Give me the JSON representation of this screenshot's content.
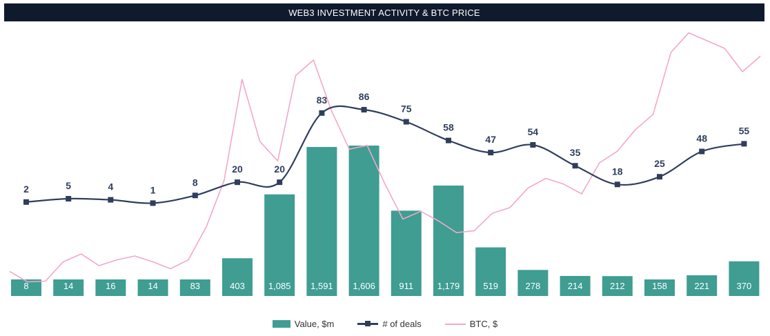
{
  "chart_data": {
    "type": "bar",
    "title": "WEB3 INVESTMENT ACTIVITY & BTC PRICE",
    "legend_position": "bottom",
    "grid": false,
    "series": [
      {
        "name": "Value, $m",
        "type": "bar",
        "color": "#3f9d92",
        "values": [
          8,
          14,
          16,
          14,
          83,
          403,
          1085,
          1591,
          1606,
          911,
          1179,
          519,
          278,
          214,
          212,
          158,
          221,
          370
        ],
        "labels": [
          "8",
          "14",
          "16",
          "14",
          "83",
          "403",
          "1,085",
          "1,591",
          "1,606",
          "911",
          "1,179",
          "519",
          "278",
          "214",
          "212",
          "158",
          "221",
          "370"
        ]
      },
      {
        "name": "# of deals",
        "type": "line",
        "color": "#2f3e5c",
        "values": [
          2,
          5,
          4,
          1,
          8,
          20,
          20,
          83,
          86,
          75,
          58,
          47,
          54,
          35,
          18,
          25,
          48,
          55
        ]
      },
      {
        "name": "BTC, $",
        "type": "line",
        "color": "#f2a7cc",
        "values": [
          6500,
          3800,
          4000,
          9000,
          11000,
          8000,
          9500,
          10500,
          9000,
          7200,
          9500,
          18000,
          30000,
          56000,
          40000,
          35000,
          57000,
          61000,
          48000,
          38000,
          39000,
          29000,
          20000,
          22000,
          19500,
          16500,
          17000,
          21500,
          23000,
          28000,
          30500,
          29000,
          26500,
          34500,
          37500,
          43000,
          47000,
          63000,
          68000,
          66000,
          64000,
          58000,
          62000
        ]
      }
    ]
  }
}
